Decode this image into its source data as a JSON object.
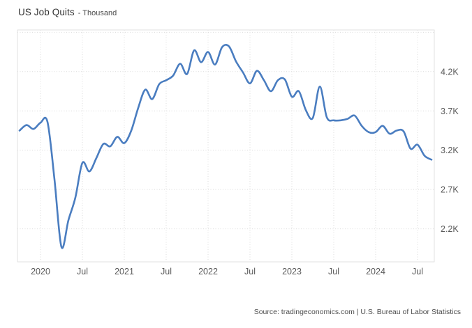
{
  "footer": {
    "source": "Source: tradingeconomics.com | U.S. Bureau of Labor Statistics"
  },
  "chart_data": {
    "type": "line",
    "title": "US Job Quits",
    "subtitle": "- Thousand",
    "ylabel": "Thousand",
    "legend": null,
    "grid": true,
    "line_color": "#4a7dc0",
    "grid_color": "#dcdcdc",
    "border_color": "#e2e2e2",
    "tick_label_color": "#595959",
    "ylim": [
      1780,
      4730
    ],
    "y_ticks": [
      {
        "label": "4.2K",
        "value": 4200
      },
      {
        "label": "3.7K",
        "value": 3700
      },
      {
        "label": "3.2K",
        "value": 3200
      },
      {
        "label": "2.7K",
        "value": 2700
      },
      {
        "label": "2.2K",
        "value": 2200
      }
    ],
    "unlabeled_gridlines": [
      4700
    ],
    "x_ticks": [
      {
        "label": "2020",
        "month_index": 3
      },
      {
        "label": "Jul",
        "month_index": 9
      },
      {
        "label": "2021",
        "month_index": 15
      },
      {
        "label": "Jul",
        "month_index": 21
      },
      {
        "label": "2022",
        "month_index": 27
      },
      {
        "label": "Jul",
        "month_index": 33
      },
      {
        "label": "2023",
        "month_index": 39
      },
      {
        "label": "Jul",
        "month_index": 45
      },
      {
        "label": "2024",
        "month_index": 51
      },
      {
        "label": "Jul",
        "month_index": 57
      }
    ],
    "series": [
      {
        "name": "US Job Quits (Thousand)",
        "points": [
          {
            "date": "2019-10",
            "value": 3450
          },
          {
            "date": "2019-11",
            "value": 3520
          },
          {
            "date": "2019-12",
            "value": 3470
          },
          {
            "date": "2020-01",
            "value": 3550
          },
          {
            "date": "2020-02",
            "value": 3560
          },
          {
            "date": "2020-03",
            "value": 2830
          },
          {
            "date": "2020-04",
            "value": 1970
          },
          {
            "date": "2020-05",
            "value": 2310
          },
          {
            "date": "2020-06",
            "value": 2600
          },
          {
            "date": "2020-07",
            "value": 3040
          },
          {
            "date": "2020-08",
            "value": 2930
          },
          {
            "date": "2020-09",
            "value": 3100
          },
          {
            "date": "2020-10",
            "value": 3280
          },
          {
            "date": "2020-11",
            "value": 3250
          },
          {
            "date": "2020-12",
            "value": 3370
          },
          {
            "date": "2021-01",
            "value": 3290
          },
          {
            "date": "2021-02",
            "value": 3450
          },
          {
            "date": "2021-03",
            "value": 3740
          },
          {
            "date": "2021-04",
            "value": 3970
          },
          {
            "date": "2021-05",
            "value": 3850
          },
          {
            "date": "2021-06",
            "value": 4040
          },
          {
            "date": "2021-07",
            "value": 4090
          },
          {
            "date": "2021-08",
            "value": 4150
          },
          {
            "date": "2021-09",
            "value": 4300
          },
          {
            "date": "2021-10",
            "value": 4170
          },
          {
            "date": "2021-11",
            "value": 4470
          },
          {
            "date": "2021-12",
            "value": 4320
          },
          {
            "date": "2022-01",
            "value": 4450
          },
          {
            "date": "2022-02",
            "value": 4290
          },
          {
            "date": "2022-03",
            "value": 4510
          },
          {
            "date": "2022-04",
            "value": 4520
          },
          {
            "date": "2022-05",
            "value": 4330
          },
          {
            "date": "2022-06",
            "value": 4190
          },
          {
            "date": "2022-07",
            "value": 4050
          },
          {
            "date": "2022-08",
            "value": 4210
          },
          {
            "date": "2022-09",
            "value": 4090
          },
          {
            "date": "2022-10",
            "value": 3950
          },
          {
            "date": "2022-11",
            "value": 4090
          },
          {
            "date": "2022-12",
            "value": 4100
          },
          {
            "date": "2023-01",
            "value": 3880
          },
          {
            "date": "2023-02",
            "value": 3950
          },
          {
            "date": "2023-03",
            "value": 3710
          },
          {
            "date": "2023-04",
            "value": 3610
          },
          {
            "date": "2023-05",
            "value": 4010
          },
          {
            "date": "2023-06",
            "value": 3620
          },
          {
            "date": "2023-07",
            "value": 3580
          },
          {
            "date": "2023-08",
            "value": 3580
          },
          {
            "date": "2023-09",
            "value": 3600
          },
          {
            "date": "2023-10",
            "value": 3640
          },
          {
            "date": "2023-11",
            "value": 3510
          },
          {
            "date": "2023-12",
            "value": 3430
          },
          {
            "date": "2024-01",
            "value": 3430
          },
          {
            "date": "2024-02",
            "value": 3510
          },
          {
            "date": "2024-03",
            "value": 3410
          },
          {
            "date": "2024-04",
            "value": 3450
          },
          {
            "date": "2024-05",
            "value": 3440
          },
          {
            "date": "2024-06",
            "value": 3220
          },
          {
            "date": "2024-07",
            "value": 3270
          },
          {
            "date": "2024-08",
            "value": 3130
          },
          {
            "date": "2024-09",
            "value": 3080
          }
        ]
      }
    ]
  }
}
